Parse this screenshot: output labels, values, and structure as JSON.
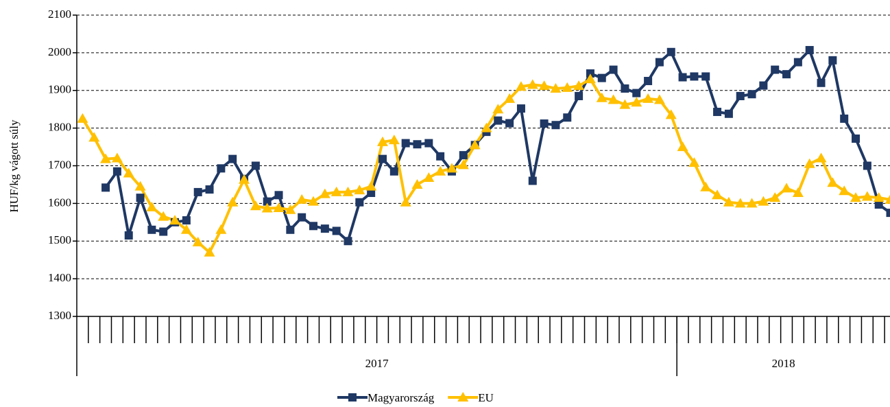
{
  "chart_data": {
    "type": "line",
    "y_label": "HUF/kg vágott súly",
    "categories": [
      null,
      null,
      null,
      null,
      null,
      null,
      null,
      null,
      null,
      null,
      null,
      null,
      null,
      null,
      null,
      null,
      null,
      null,
      null,
      null,
      null,
      null,
      null,
      null,
      null,
      null,
      null,
      null,
      null,
      null,
      null,
      null,
      null,
      null,
      null,
      null,
      null,
      null,
      null,
      null,
      null,
      null,
      null,
      null,
      null,
      null,
      null,
      null,
      null,
      null,
      null,
      null,
      null,
      null,
      null,
      null,
      null,
      null,
      null,
      null,
      null,
      null,
      null,
      null,
      null,
      null,
      null,
      null,
      null,
      null,
      null
    ],
    "groups": [
      {
        "label": "2017",
        "size": 52
      },
      {
        "label": "2018",
        "size": 19
      }
    ],
    "series": [
      {
        "name": "Magyarország",
        "color": "#1f3864",
        "marker": "square",
        "values": [
          null,
          null,
          1642,
          1685,
          1515,
          1615,
          1530,
          1525,
          1550,
          1555,
          1630,
          1637,
          1693,
          1718,
          1665,
          1700,
          1605,
          1622,
          1530,
          1563,
          1540,
          1533,
          1527,
          1500,
          1603,
          1628,
          1718,
          1685,
          1760,
          1757,
          1760,
          1725,
          1685,
          1728,
          1755,
          1790,
          1820,
          1813,
          1852,
          1660,
          1812,
          1808,
          1828,
          1885,
          1945,
          1933,
          1955,
          1905,
          1893,
          1925,
          1975,
          2002,
          1935,
          1937,
          1937,
          1843,
          1838,
          1885,
          1890,
          1913,
          1955,
          1943,
          1975,
          2007,
          1920,
          1980,
          1825,
          1772,
          1700,
          1597,
          1575
        ]
      },
      {
        "name": "EU",
        "color": "#ffc000",
        "marker": "triangle",
        "values": [
          1825,
          1775,
          1718,
          1720,
          1680,
          1645,
          1590,
          1565,
          1555,
          1530,
          1497,
          1470,
          1530,
          1603,
          1663,
          1593,
          1587,
          1588,
          1583,
          1610,
          1605,
          1625,
          1630,
          1630,
          1635,
          1645,
          1763,
          1768,
          1603,
          1650,
          1668,
          1685,
          1693,
          1702,
          1755,
          1800,
          1850,
          1878,
          1910,
          1915,
          1912,
          1905,
          1907,
          1912,
          1930,
          1880,
          1875,
          1862,
          1868,
          1878,
          1875,
          1835,
          1750,
          1708,
          1643,
          1622,
          1603,
          1600,
          1600,
          1605,
          1615,
          1640,
          1628,
          1705,
          1720,
          1655,
          1633,
          1615,
          1618,
          1615,
          1610
        ]
      }
    ],
    "ylim": [
      1300,
      2100
    ],
    "yticks": [
      1300,
      1400,
      1500,
      1600,
      1700,
      1800,
      1900,
      2000,
      2100
    ],
    "grid": true,
    "legend": "bottom"
  }
}
